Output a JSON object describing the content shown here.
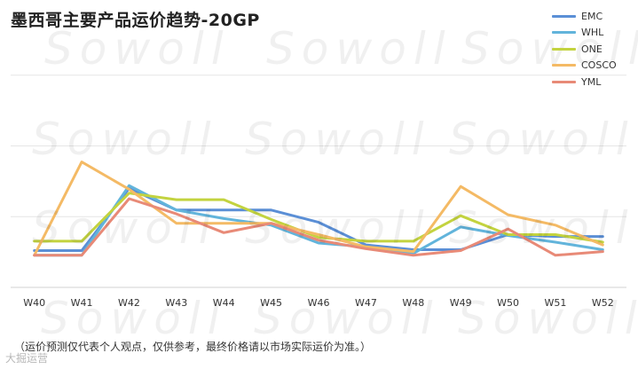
{
  "chart_data": {
    "type": "line",
    "title": "墨西哥主要产品运价趋势-20GP",
    "categories": [
      "W40",
      "W41",
      "W42",
      "W43",
      "W44",
      "W45",
      "W46",
      "W47",
      "W48",
      "W49",
      "W50",
      "W51",
      "W52"
    ],
    "series": [
      {
        "name": "EMC",
        "color": "#5b8fd6",
        "values": [
          39,
          39,
          105,
          82,
          82,
          82,
          69,
          45,
          40,
          40,
          56,
          54,
          54
        ]
      },
      {
        "name": "WHL",
        "color": "#62b4db",
        "values": [
          34,
          34,
          108,
          82,
          73,
          66,
          47,
          43,
          36,
          64,
          55,
          48,
          40
        ]
      },
      {
        "name": "ONE",
        "color": "#c3d33f",
        "values": [
          49,
          49,
          100,
          93,
          93,
          72,
          53,
          49,
          49,
          76,
          56,
          56,
          48
        ]
      },
      {
        "name": "COSCO",
        "color": "#f4ba65",
        "values": [
          34,
          133,
          104,
          68,
          68,
          68,
          56,
          43,
          38,
          107,
          77,
          66,
          45
        ]
      },
      {
        "name": "YML",
        "color": "#e88a77",
        "values": [
          34,
          34,
          94,
          78,
          58,
          68,
          50,
          41,
          34,
          39,
          62,
          34,
          38
        ]
      }
    ],
    "ylim": [
      0,
      300
    ],
    "grid": true,
    "legend_position": "top-right"
  },
  "watermark": "Sowoll",
  "footnote": "（运价预测仅代表个人观点，仅供参考，最终价格请以市场实际运价为准。）",
  "logo_text": "大掘运营"
}
